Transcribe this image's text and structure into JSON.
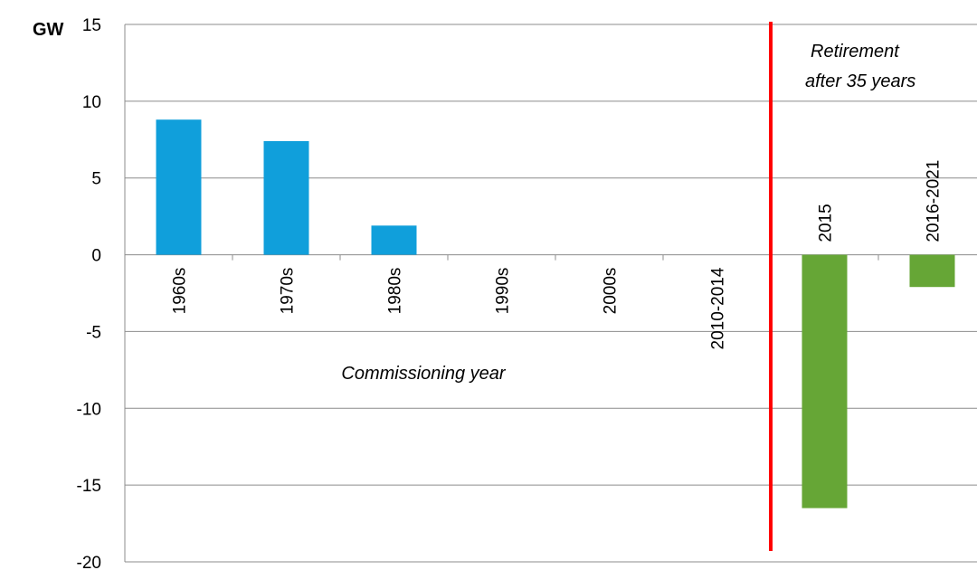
{
  "chart_data": {
    "type": "bar",
    "ylabel": "GW",
    "ylim": [
      -20,
      15
    ],
    "yticks": [
      15,
      10,
      5,
      0,
      -5,
      -10,
      -15,
      -20
    ],
    "grid": true,
    "categories": [
      "1960s",
      "1970s",
      "1980s",
      "1990s",
      "2000s",
      "2010-2014",
      "2015",
      "2016-2021"
    ],
    "series": [
      {
        "values": [
          8.8,
          7.4,
          1.9,
          0,
          0,
          0,
          null,
          null
        ],
        "color": "#109fdb"
      },
      {
        "values": [
          null,
          null,
          null,
          null,
          null,
          null,
          -16.5,
          -2.1
        ],
        "color": "#66a636"
      }
    ],
    "annotations": {
      "commissioning": "Commissioning year",
      "retirement_line1": "Retirement",
      "retirement_line2": "after 35 years"
    },
    "divider_color": "#ff0000"
  }
}
